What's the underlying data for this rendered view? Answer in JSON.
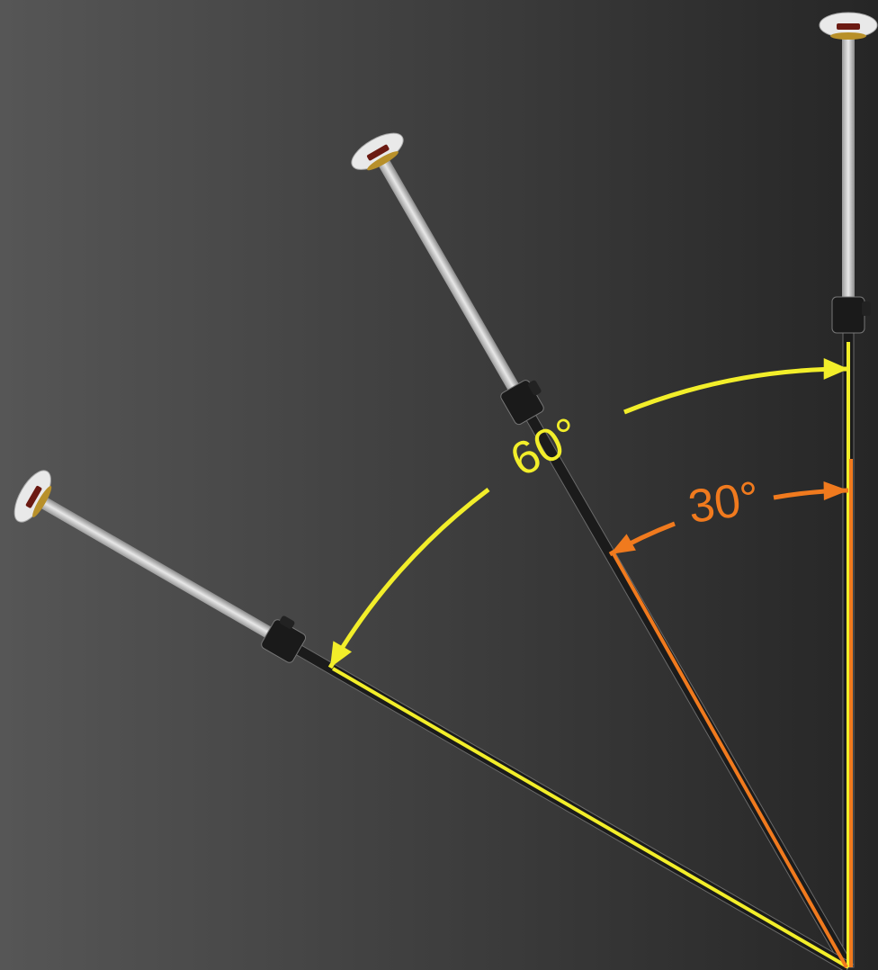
{
  "labels": {
    "angle_60": "60°",
    "angle_30": "30°"
  }
}
